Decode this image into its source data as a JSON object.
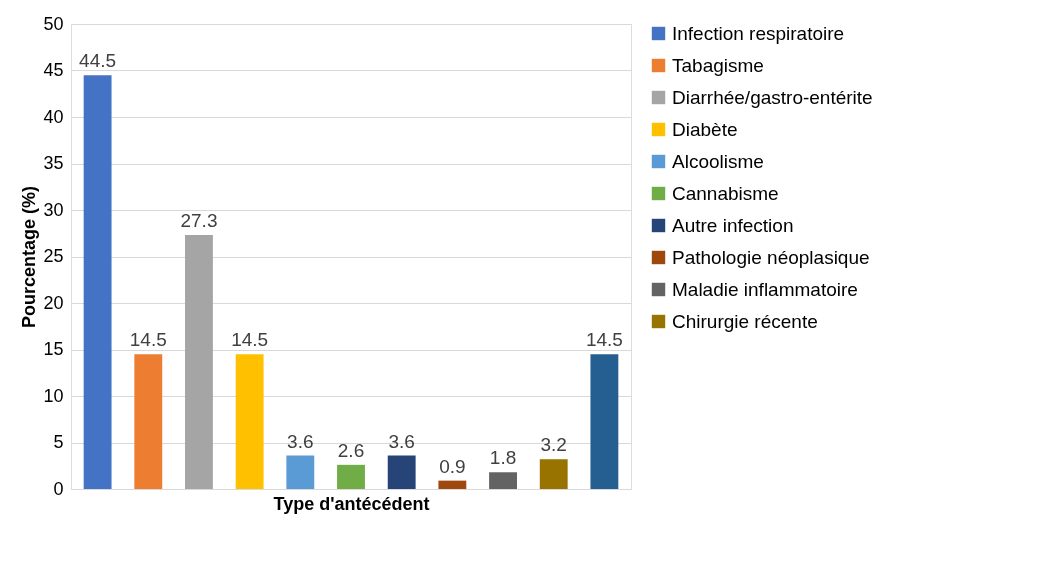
{
  "chart_data": {
    "type": "bar",
    "xlabel": "Type d'antécédent",
    "ylabel": "Pourcentage (%)",
    "categories": [
      null,
      null,
      null,
      null,
      null,
      null,
      null,
      null,
      null,
      null,
      null
    ],
    "series": [
      {
        "name": "Infection respiratoire",
        "color": "#4472c4",
        "values": [
          44.5,
          null,
          null,
          null,
          null,
          null,
          null,
          null,
          null,
          null,
          null
        ]
      },
      {
        "name": "Tabagisme",
        "color": "#ed7d31",
        "values": [
          null,
          14.5,
          null,
          null,
          null,
          null,
          null,
          null,
          null,
          null,
          null
        ]
      },
      {
        "name": "Diarrhée/gastro-entérite",
        "color": "#a5a5a5",
        "values": [
          null,
          null,
          27.3,
          null,
          null,
          null,
          null,
          null,
          null,
          null,
          null
        ]
      },
      {
        "name": "Diabète",
        "color": "#ffc000",
        "values": [
          null,
          null,
          null,
          14.5,
          null,
          null,
          null,
          null,
          null,
          null,
          null
        ]
      },
      {
        "name": "Alcoolisme",
        "color": "#5b9bd5",
        "values": [
          null,
          null,
          null,
          null,
          3.6,
          null,
          null,
          null,
          null,
          null,
          null
        ]
      },
      {
        "name": "Cannabisme",
        "color": "#70ad47",
        "values": [
          null,
          null,
          null,
          null,
          null,
          2.6,
          null,
          null,
          null,
          null,
          null
        ]
      },
      {
        "name": "Autre infection",
        "color": "#264478",
        "values": [
          null,
          null,
          null,
          null,
          null,
          null,
          3.6,
          null,
          null,
          null,
          null
        ]
      },
      {
        "name": "Pathologie néoplasique",
        "color": "#9e480e",
        "values": [
          null,
          null,
          null,
          null,
          null,
          null,
          null,
          0.9,
          null,
          null,
          null
        ]
      },
      {
        "name": "Maladie inflammatoire",
        "color": "#636363",
        "values": [
          null,
          null,
          null,
          null,
          null,
          null,
          null,
          null,
          1.8,
          null,
          null
        ]
      },
      {
        "name": "Chirurgie récente",
        "color": "#997300",
        "values": [
          null,
          null,
          null,
          null,
          null,
          null,
          null,
          null,
          null,
          3.2,
          null
        ]
      },
      {
        "color": "#255e91",
        "values": [
          null,
          null,
          null,
          null,
          null,
          null,
          null,
          null,
          null,
          null,
          14.5
        ]
      }
    ],
    "ylim": [
      0,
      50
    ],
    "yticks": [
      0,
      5,
      10,
      15,
      20,
      25,
      30,
      35,
      40,
      45,
      50
    ],
    "grid": "y",
    "legend": "right",
    "data_labels": true
  }
}
